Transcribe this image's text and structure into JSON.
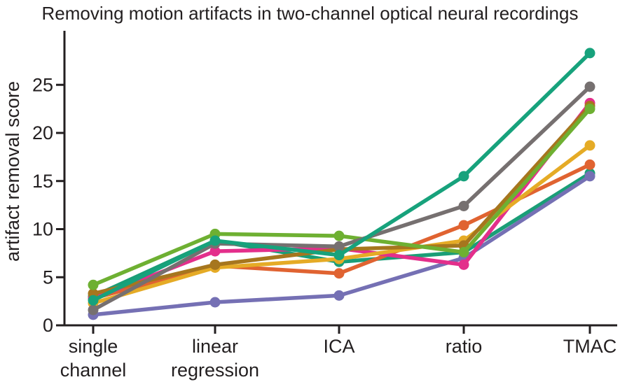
{
  "chart_data": {
    "type": "line",
    "title": "Removing motion artifacts in two-channel optical neural recordings",
    "xlabel": "",
    "ylabel": "artifact removal score",
    "categories": [
      [
        "single",
        "channel"
      ],
      [
        "linear",
        "regression"
      ],
      [
        "ICA"
      ],
      [
        "ratio"
      ],
      [
        "TMAC"
      ]
    ],
    "yticks": [
      0,
      5,
      10,
      15,
      20,
      25
    ],
    "ylim": [
      0,
      29
    ],
    "grid": false,
    "legend": "none",
    "series": [
      {
        "color": "#1a9e77",
        "values": [
          3.0,
          8.8,
          6.6,
          7.6,
          15.8
        ]
      },
      {
        "color": "#e06331",
        "values": [
          2.8,
          6.2,
          5.4,
          10.4,
          16.7
        ]
      },
      {
        "color": "#7570b4",
        "values": [
          1.1,
          2.4,
          3.1,
          7.0,
          15.5
        ]
      },
      {
        "color": "#e32f8b",
        "values": [
          2.8,
          7.7,
          8.0,
          6.3,
          23.1
        ]
      },
      {
        "color": "#e5ab26",
        "values": [
          2.3,
          6.0,
          6.9,
          8.8,
          18.7
        ]
      },
      {
        "color": "#a6761e",
        "values": [
          3.3,
          6.3,
          7.9,
          8.3,
          22.8
        ]
      },
      {
        "color": "#6eb032",
        "values": [
          4.2,
          9.5,
          9.3,
          7.6,
          22.5
        ]
      },
      {
        "color": "#767070",
        "values": [
          1.6,
          8.5,
          8.2,
          12.4,
          24.8
        ]
      },
      {
        "color": "#17a27c",
        "values": [
          2.6,
          8.8,
          7.3,
          15.5,
          28.3
        ]
      }
    ]
  }
}
